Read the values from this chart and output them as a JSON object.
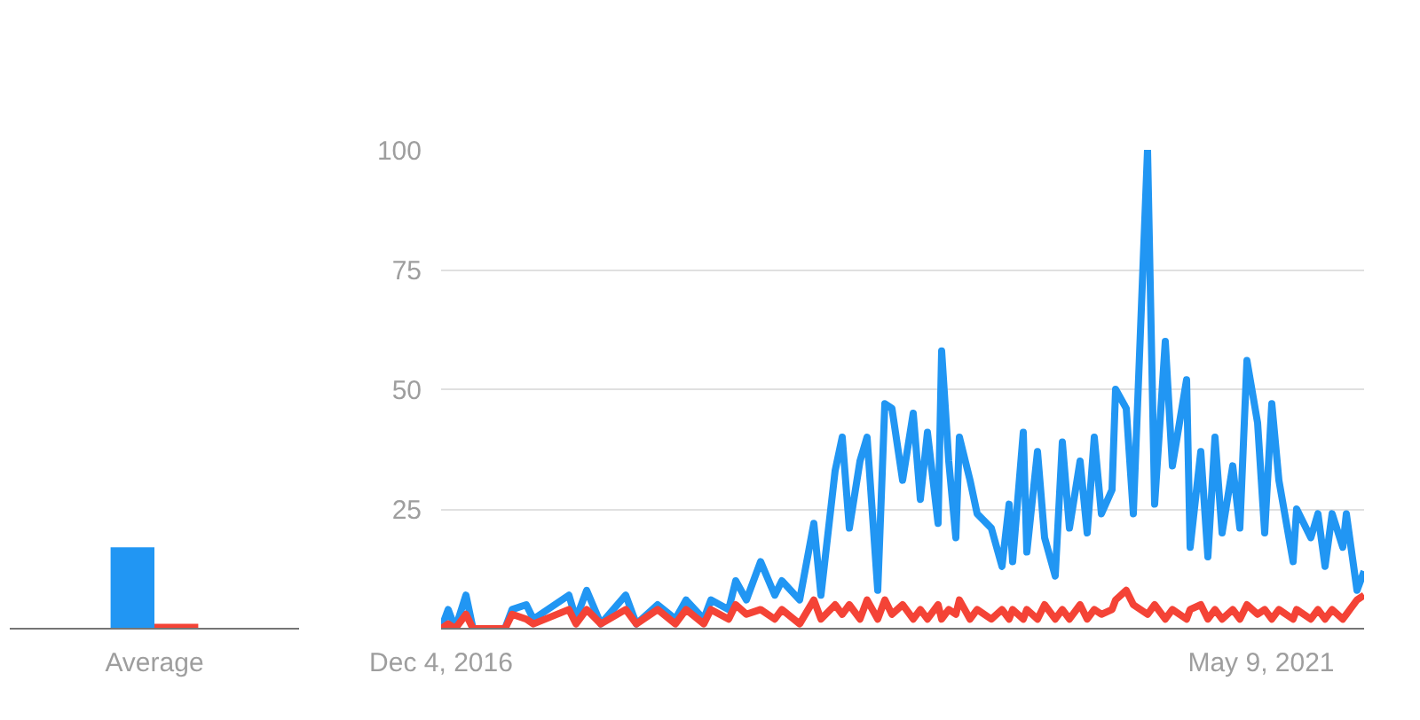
{
  "chart_data": [
    {
      "type": "bar",
      "categories": [
        "Average"
      ],
      "ylim": [
        0,
        100
      ],
      "tick_labels": "x",
      "series": [
        {
          "color": "#2196f3",
          "values": [
            17
          ]
        },
        {
          "color": "#f44336",
          "values": [
            1
          ]
        }
      ]
    },
    {
      "type": "line",
      "ylim": [
        0,
        100
      ],
      "yticks": [
        25,
        50,
        75,
        100
      ],
      "xlim": [
        "2016-12-04",
        "2021-11-28"
      ],
      "xticks": [
        {
          "value": "2016-12-04",
          "label": "Dec 4, 2016"
        },
        {
          "value": "2021-05-09",
          "label": "May 9, 2021"
        }
      ],
      "grid": "y",
      "x": [
        "2016-12-04",
        "2016-12-18",
        "2017-01-01",
        "2017-01-22",
        "2017-02-05",
        "2017-04-09",
        "2017-04-23",
        "2017-05-21",
        "2017-06-04",
        "2017-08-13",
        "2017-08-27",
        "2017-09-17",
        "2017-10-15",
        "2017-12-03",
        "2017-12-24",
        "2018-02-04",
        "2018-03-11",
        "2018-04-01",
        "2018-05-06",
        "2018-05-20",
        "2018-06-24",
        "2018-07-08",
        "2018-07-29",
        "2018-08-26",
        "2018-09-23",
        "2018-10-07",
        "2018-11-11",
        "2018-12-09",
        "2018-12-23",
        "2019-01-20",
        "2019-02-03",
        "2019-02-17",
        "2019-03-10",
        "2019-03-24",
        "2019-04-14",
        "2019-04-28",
        "2019-05-12",
        "2019-06-02",
        "2019-06-23",
        "2019-07-07",
        "2019-07-21",
        "2019-08-11",
        "2019-08-18",
        "2019-09-01",
        "2019-09-15",
        "2019-09-22",
        "2019-10-13",
        "2019-10-27",
        "2019-11-24",
        "2019-12-15",
        "2019-12-29",
        "2020-01-05",
        "2020-01-26",
        "2020-02-02",
        "2020-02-23",
        "2020-03-08",
        "2020-03-29",
        "2020-04-12",
        "2020-04-26",
        "2020-05-17",
        "2020-05-31",
        "2020-06-14",
        "2020-06-28",
        "2020-07-19",
        "2020-07-26",
        "2020-08-16",
        "2020-08-30",
        "2020-09-27",
        "2020-10-11",
        "2020-11-01",
        "2020-11-15",
        "2020-12-13",
        "2020-12-20",
        "2021-01-10",
        "2021-01-24",
        "2021-02-07",
        "2021-02-21",
        "2021-03-14",
        "2021-03-28",
        "2021-04-11",
        "2021-05-02",
        "2021-05-16",
        "2021-05-30",
        "2021-06-13",
        "2021-07-11",
        "2021-07-18",
        "2021-08-15",
        "2021-08-29",
        "2021-09-12",
        "2021-09-26",
        "2021-10-17",
        "2021-10-24",
        "2021-11-14",
        "2021-11-28"
      ],
      "series": [
        {
          "color": "#2196f3",
          "values": [
            0,
            4,
            0,
            7,
            0,
            0,
            4,
            5,
            2,
            7,
            2,
            8,
            1,
            7,
            1,
            5,
            2,
            6,
            2,
            6,
            4,
            10,
            6,
            14,
            7,
            10,
            6,
            22,
            7,
            33,
            40,
            21,
            35,
            40,
            8,
            47,
            46,
            31,
            45,
            27,
            41,
            22,
            58,
            35,
            19,
            40,
            31,
            24,
            21,
            13,
            26,
            14,
            41,
            16,
            37,
            19,
            11,
            39,
            21,
            35,
            20,
            40,
            24,
            29,
            50,
            46,
            24,
            100,
            26,
            60,
            34,
            52,
            17,
            37,
            15,
            40,
            20,
            34,
            21,
            56,
            43,
            20,
            47,
            31,
            14,
            25,
            19,
            24,
            13,
            24,
            17,
            24,
            8,
            12
          ]
        },
        {
          "color": "#f44336",
          "values": [
            0,
            1,
            0,
            3,
            0,
            0,
            3,
            2,
            1,
            4,
            1,
            4,
            1,
            4,
            1,
            4,
            1,
            4,
            1,
            4,
            2,
            5,
            3,
            4,
            2,
            4,
            1,
            6,
            2,
            5,
            3,
            5,
            2,
            6,
            2,
            6,
            3,
            5,
            2,
            4,
            2,
            5,
            2,
            4,
            3,
            6,
            2,
            4,
            2,
            4,
            2,
            4,
            2,
            4,
            2,
            5,
            2,
            4,
            2,
            5,
            2,
            4,
            3,
            4,
            6,
            8,
            5,
            3,
            5,
            2,
            4,
            2,
            4,
            5,
            2,
            4,
            2,
            4,
            2,
            5,
            3,
            4,
            2,
            4,
            2,
            4,
            2,
            4,
            2,
            4,
            2,
            3,
            6,
            7
          ]
        }
      ]
    }
  ]
}
